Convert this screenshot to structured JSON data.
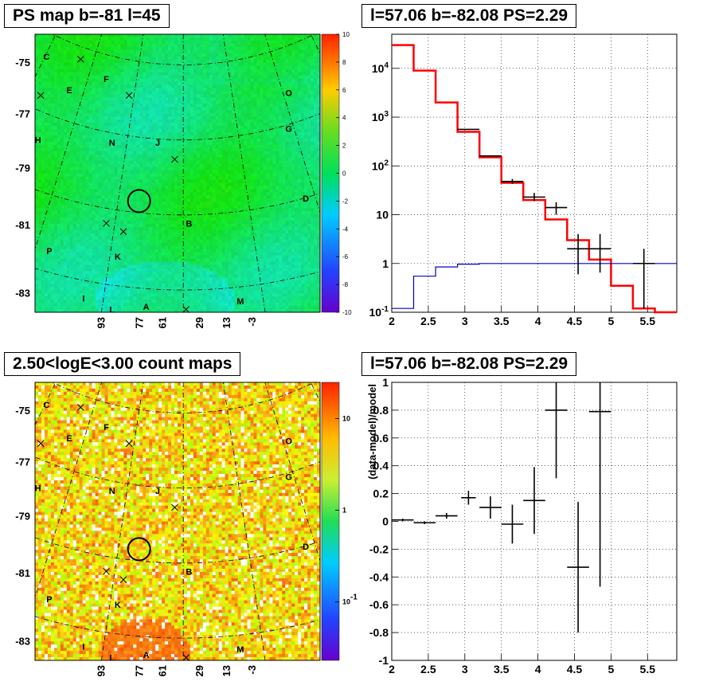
{
  "panels": {
    "ps_map": {
      "title": "PS map b=-81 l=45",
      "lat_ticks": [
        "-75",
        "-77",
        "-79",
        "-81",
        "-83"
      ],
      "lon_ticks": [
        "93",
        "77",
        "61",
        "29",
        "13",
        "-3"
      ],
      "regions": [
        "C",
        "F",
        "E",
        "O",
        "G",
        "H",
        "N",
        "J",
        "D",
        "B",
        "K",
        "P",
        "I",
        "L",
        "A",
        "M"
      ],
      "colorbar_ticks": [
        "10",
        "8",
        "6",
        "4",
        "2",
        "0",
        "-2",
        "-4",
        "-6",
        "-8",
        "-10"
      ]
    },
    "spectrum": {
      "title": "l=57.06 b=-82.08 PS=2.29",
      "ytick_labels": [
        "10^4",
        "10^3",
        "10^2",
        "10",
        "1",
        "10^-1"
      ]
    },
    "count_map": {
      "title": "2.50<logE<3.00 count maps",
      "lat_ticks": [
        "-75",
        "-77",
        "-79",
        "-81",
        "-83"
      ],
      "lon_ticks": [
        "93",
        "77",
        "61",
        "29",
        "13",
        "-3"
      ],
      "regions": [
        "C",
        "F",
        "E",
        "O",
        "G",
        "H",
        "N",
        "J",
        "D",
        "B",
        "K",
        "P",
        "I",
        "L",
        "A",
        "M"
      ],
      "colorbar_ticks": [
        "10",
        "1",
        "10^-1"
      ]
    },
    "residual": {
      "title": "l=57.06 b=-82.08 PS=2.29",
      "ylabel": "(data-model)/model"
    }
  },
  "chart_data": [
    {
      "type": "heatmap",
      "title": "PS map b=-81 l=45",
      "ylabel_ticks": [
        "-75",
        "-77",
        "-79",
        "-81",
        "-83"
      ],
      "xlabel_ticks": [
        "93",
        "77",
        "61",
        "29",
        "13",
        "-3"
      ],
      "colorbar_range": [
        -10,
        10
      ],
      "color_scale": "linear",
      "source_circle": {
        "l": 57.06,
        "b": -82.08
      }
    },
    {
      "type": "line",
      "title": "l=57.06 b=-82.08 PS=2.29",
      "x_range": [
        2,
        5.9
      ],
      "y_range": [
        0.1,
        50000
      ],
      "y_scale": "log",
      "grid": true,
      "bin_edges": [
        2.0,
        2.3,
        2.6,
        2.9,
        3.2,
        3.5,
        3.8,
        4.1,
        4.4,
        4.7,
        5.0,
        5.3,
        5.6,
        5.9
      ],
      "series": [
        {
          "values": [
            30000,
            9000,
            2000,
            500,
            150,
            45,
            20,
            8,
            3,
            1.2,
            0.35,
            0.12,
            0.07
          ]
        },
        {
          "values": [
            0.12,
            0.55,
            0.85,
            0.97,
            1,
            1,
            1,
            1,
            1,
            1,
            1,
            1,
            1
          ]
        }
      ],
      "points": [
        {
          "x": 3.05,
          "y": 560,
          "xerr": 0.15,
          "ylo": 560,
          "yhi": 560
        },
        {
          "x": 3.35,
          "y": 160,
          "xerr": 0.15,
          "ylo": 160,
          "yhi": 160
        },
        {
          "x": 3.65,
          "y": 48,
          "xerr": 0.15,
          "ylo": 43,
          "yhi": 54
        },
        {
          "x": 3.95,
          "y": 23,
          "xerr": 0.15,
          "ylo": 19,
          "yhi": 28
        },
        {
          "x": 4.25,
          "y": 14,
          "xerr": 0.15,
          "ylo": 10,
          "yhi": 18
        },
        {
          "x": 4.55,
          "y": 2,
          "xerr": 0.15,
          "ylo": 0.6,
          "yhi": 4
        },
        {
          "x": 4.85,
          "y": 2,
          "xerr": 0.15,
          "ylo": 0.65,
          "yhi": 4
        },
        {
          "x": 5.45,
          "y": 1,
          "xerr": 0.15,
          "ylo": 0.12,
          "yhi": 2
        }
      ]
    },
    {
      "type": "heatmap",
      "title": "2.50<logE<3.00 count maps",
      "ylabel_ticks": [
        "-75",
        "-77",
        "-79",
        "-81",
        "-83"
      ],
      "xlabel_ticks": [
        "93",
        "77",
        "61",
        "29",
        "13",
        "-3"
      ],
      "colorbar_range": [
        0.05,
        20
      ],
      "color_scale": "log"
    },
    {
      "type": "scatter",
      "title": "l=57.06 b=-82.08 PS=2.29",
      "ylabel": "(data-model)/model",
      "x_range": [
        2,
        5.9
      ],
      "y_range": [
        -1,
        1
      ],
      "grid": true,
      "points": [
        {
          "x": 2.15,
          "y": 0.01,
          "xerr": 0.15,
          "ylo": 0.0,
          "yhi": 0.02
        },
        {
          "x": 2.45,
          "y": -0.01,
          "xerr": 0.15,
          "ylo": -0.02,
          "yhi": 0.0
        },
        {
          "x": 2.75,
          "y": 0.04,
          "xerr": 0.15,
          "ylo": 0.02,
          "yhi": 0.06
        },
        {
          "x": 3.05,
          "y": 0.17,
          "xerr": 0.1,
          "ylo": 0.12,
          "yhi": 0.22
        },
        {
          "x": 3.35,
          "y": 0.1,
          "xerr": 0.15,
          "ylo": 0.02,
          "yhi": 0.18
        },
        {
          "x": 3.65,
          "y": -0.02,
          "xerr": 0.15,
          "ylo": -0.16,
          "yhi": 0.12
        },
        {
          "x": 3.95,
          "y": 0.15,
          "xerr": 0.15,
          "ylo": -0.09,
          "yhi": 0.39
        },
        {
          "x": 4.25,
          "y": 0.8,
          "xerr": 0.15,
          "ylo": 0.31,
          "yhi": 1.0
        },
        {
          "x": 4.55,
          "y": -0.33,
          "xerr": 0.15,
          "ylo": -0.8,
          "yhi": 0.14
        },
        {
          "x": 4.85,
          "y": 0.79,
          "xerr": 0.15,
          "ylo": -0.47,
          "yhi": 1.0
        }
      ]
    }
  ],
  "colors": {
    "model": "#ff0000",
    "background_model": "#0000cc",
    "data": "#000000"
  }
}
